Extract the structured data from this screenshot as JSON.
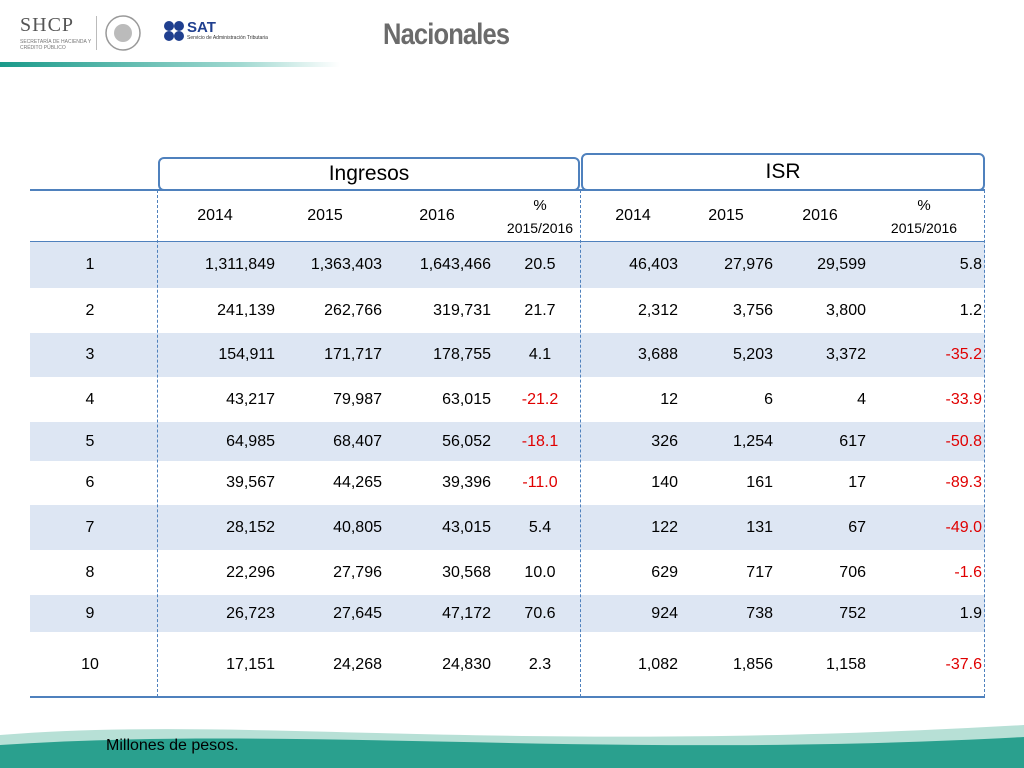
{
  "header": {
    "agency": "SHCP",
    "agency_subtitle": "SECRETARÍA DE HACIENDA Y CRÉDITO PÚBLICO",
    "service": "SAT",
    "service_subtitle": "Servicio de Administración Tributaria",
    "title": "Nacionales"
  },
  "table": {
    "groups": [
      "Ingresos",
      "ISR"
    ],
    "columns": [
      "2014",
      "2015",
      "2016",
      {
        "symbol": "%",
        "period": "2015/2016"
      },
      "2014",
      "2015",
      "2016",
      {
        "symbol": "%",
        "period": "2015/2016"
      }
    ],
    "rows": [
      {
        "label": "1",
        "values": [
          "1,311,849",
          "1,363,403",
          "1,643,466",
          "20.5",
          "46,403",
          "27,976",
          "29,599",
          "5.8"
        ]
      },
      {
        "label": "2",
        "values": [
          "241,139",
          "262,766",
          "319,731",
          "21.7",
          "2,312",
          "3,756",
          "3,800",
          "1.2"
        ]
      },
      {
        "label": "3",
        "values": [
          "154,911",
          "171,717",
          "178,755",
          "4.1",
          "3,688",
          "5,203",
          "3,372",
          "-35.2"
        ]
      },
      {
        "label": "4",
        "values": [
          "43,217",
          "79,987",
          "63,015",
          "-21.2",
          "12",
          "6",
          "4",
          "-33.9"
        ]
      },
      {
        "label": "5",
        "values": [
          "64,985",
          "68,407",
          "56,052",
          "-18.1",
          "326",
          "1,254",
          "617",
          "-50.8"
        ]
      },
      {
        "label": "6",
        "values": [
          "39,567",
          "44,265",
          "39,396",
          "-11.0",
          "140",
          "161",
          "17",
          "-89.3"
        ]
      },
      {
        "label": "7",
        "values": [
          "28,152",
          "40,805",
          "43,015",
          "5.4",
          "122",
          "131",
          "67",
          "-49.0"
        ]
      },
      {
        "label": "8",
        "values": [
          "22,296",
          "27,796",
          "30,568",
          "10.0",
          "629",
          "717",
          "706",
          "-1.6"
        ]
      },
      {
        "label": "9",
        "values": [
          "26,723",
          "27,645",
          "47,172",
          "70.6",
          "924",
          "738",
          "752",
          "1.9"
        ]
      },
      {
        "label": "10",
        "values": [
          "17,151",
          "24,268",
          "24,830",
          "2.3",
          "1,082",
          "1,856",
          "1,158",
          "-37.6"
        ]
      }
    ]
  },
  "footnote": "Millones de pesos."
}
